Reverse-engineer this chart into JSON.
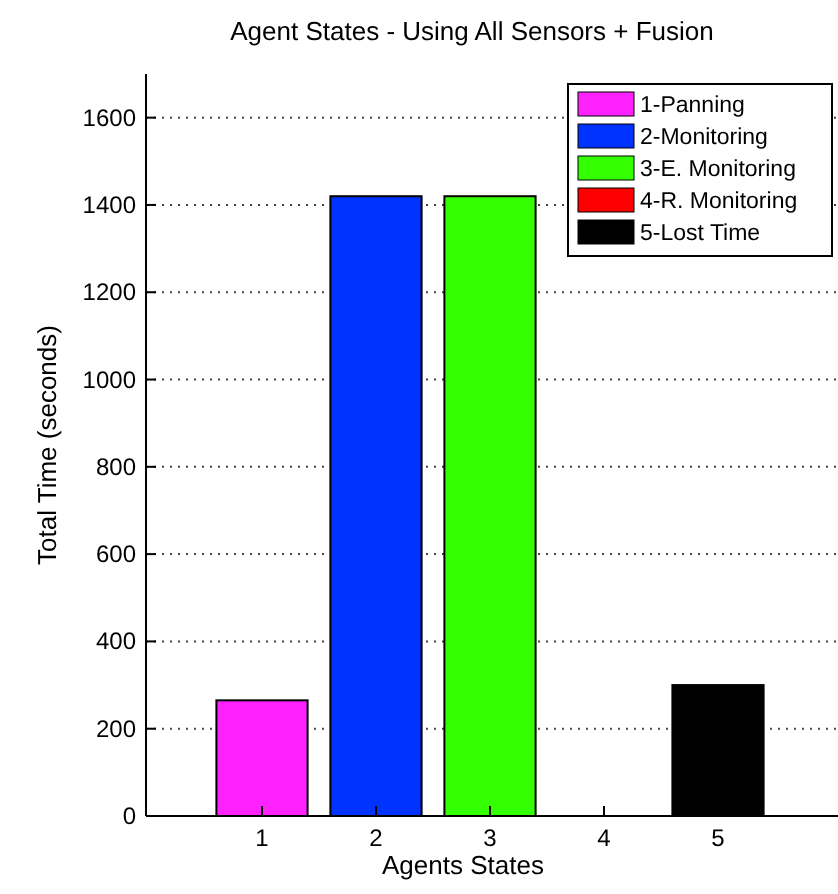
{
  "chart_data": {
    "type": "bar",
    "title": "Agent States - Using All Sensors + Fusion",
    "xlabel": "Agents States",
    "ylabel": "Total Time (seconds)",
    "categories": [
      "1",
      "2",
      "3",
      "4",
      "5"
    ],
    "series": [
      {
        "name": "1-Panning",
        "color": "#ff22ff",
        "values": [
          265,
          null,
          null,
          null,
          null
        ]
      },
      {
        "name": "2-Monitoring",
        "color": "#0033ff",
        "values": [
          null,
          1420,
          null,
          null,
          null
        ]
      },
      {
        "name": "3-E. Monitoring",
        "color": "#33ff00",
        "values": [
          null,
          null,
          1420,
          null,
          null
        ]
      },
      {
        "name": "4-R. Monitoring",
        "color": "#ff0000",
        "values": [
          null,
          null,
          null,
          0,
          null
        ]
      },
      {
        "name": "5-Lost Time",
        "color": "#000000",
        "values": [
          null,
          null,
          null,
          null,
          300
        ]
      }
    ],
    "ylim": [
      0,
      1700
    ],
    "yticks": [
      0,
      200,
      400,
      600,
      800,
      1000,
      1200,
      1400,
      1600
    ],
    "grid": "y",
    "legend": "top right"
  }
}
